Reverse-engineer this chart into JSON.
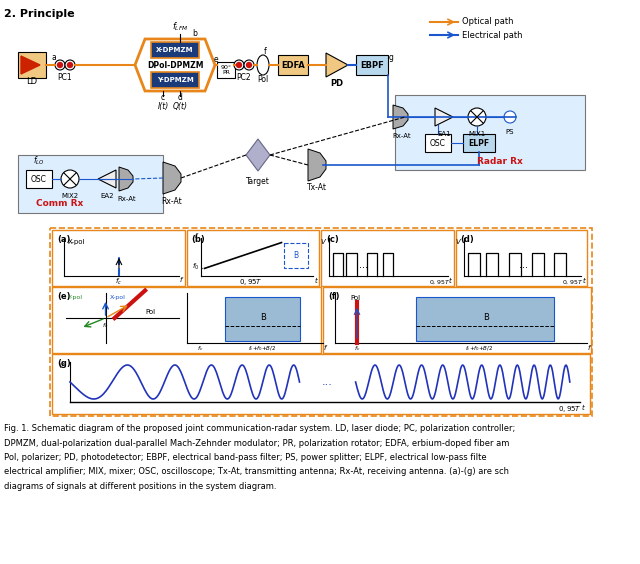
{
  "title": "2. Principle",
  "caption_lines": [
    "Fig. 1. Schematic diagram of the proposed joint communication-radar system. LD, laser diode; PC, polarization controller;",
    "DPMZM, dual-polarization dual-parallel Mach-Zehnder modulator; PR, polarization rotator; EDFA, erbium-doped fiber am",
    "Pol, polarizer; PD, photodetector; EBPF, electrical band-pass filter; PS, power splitter; ELPF, electrical low-pass filte",
    "electrical amplifier; MIX, mixer; OSC, oscilloscope; Tx-At, transmitting antenna; Rx-At, receiving antenna. (a)-(g) are sch",
    "diagrams of signals at different positions in the system diagram."
  ],
  "orange": "#E8861A",
  "blue": "#1A56CC",
  "red": "#CC1111",
  "sig_blue": "#2233BB",
  "blk_tan": "#F0C882",
  "blk_blue": "#1A3A7A",
  "blk_gray": "#AAAAAA",
  "panel_blue": "#9BBBD4"
}
